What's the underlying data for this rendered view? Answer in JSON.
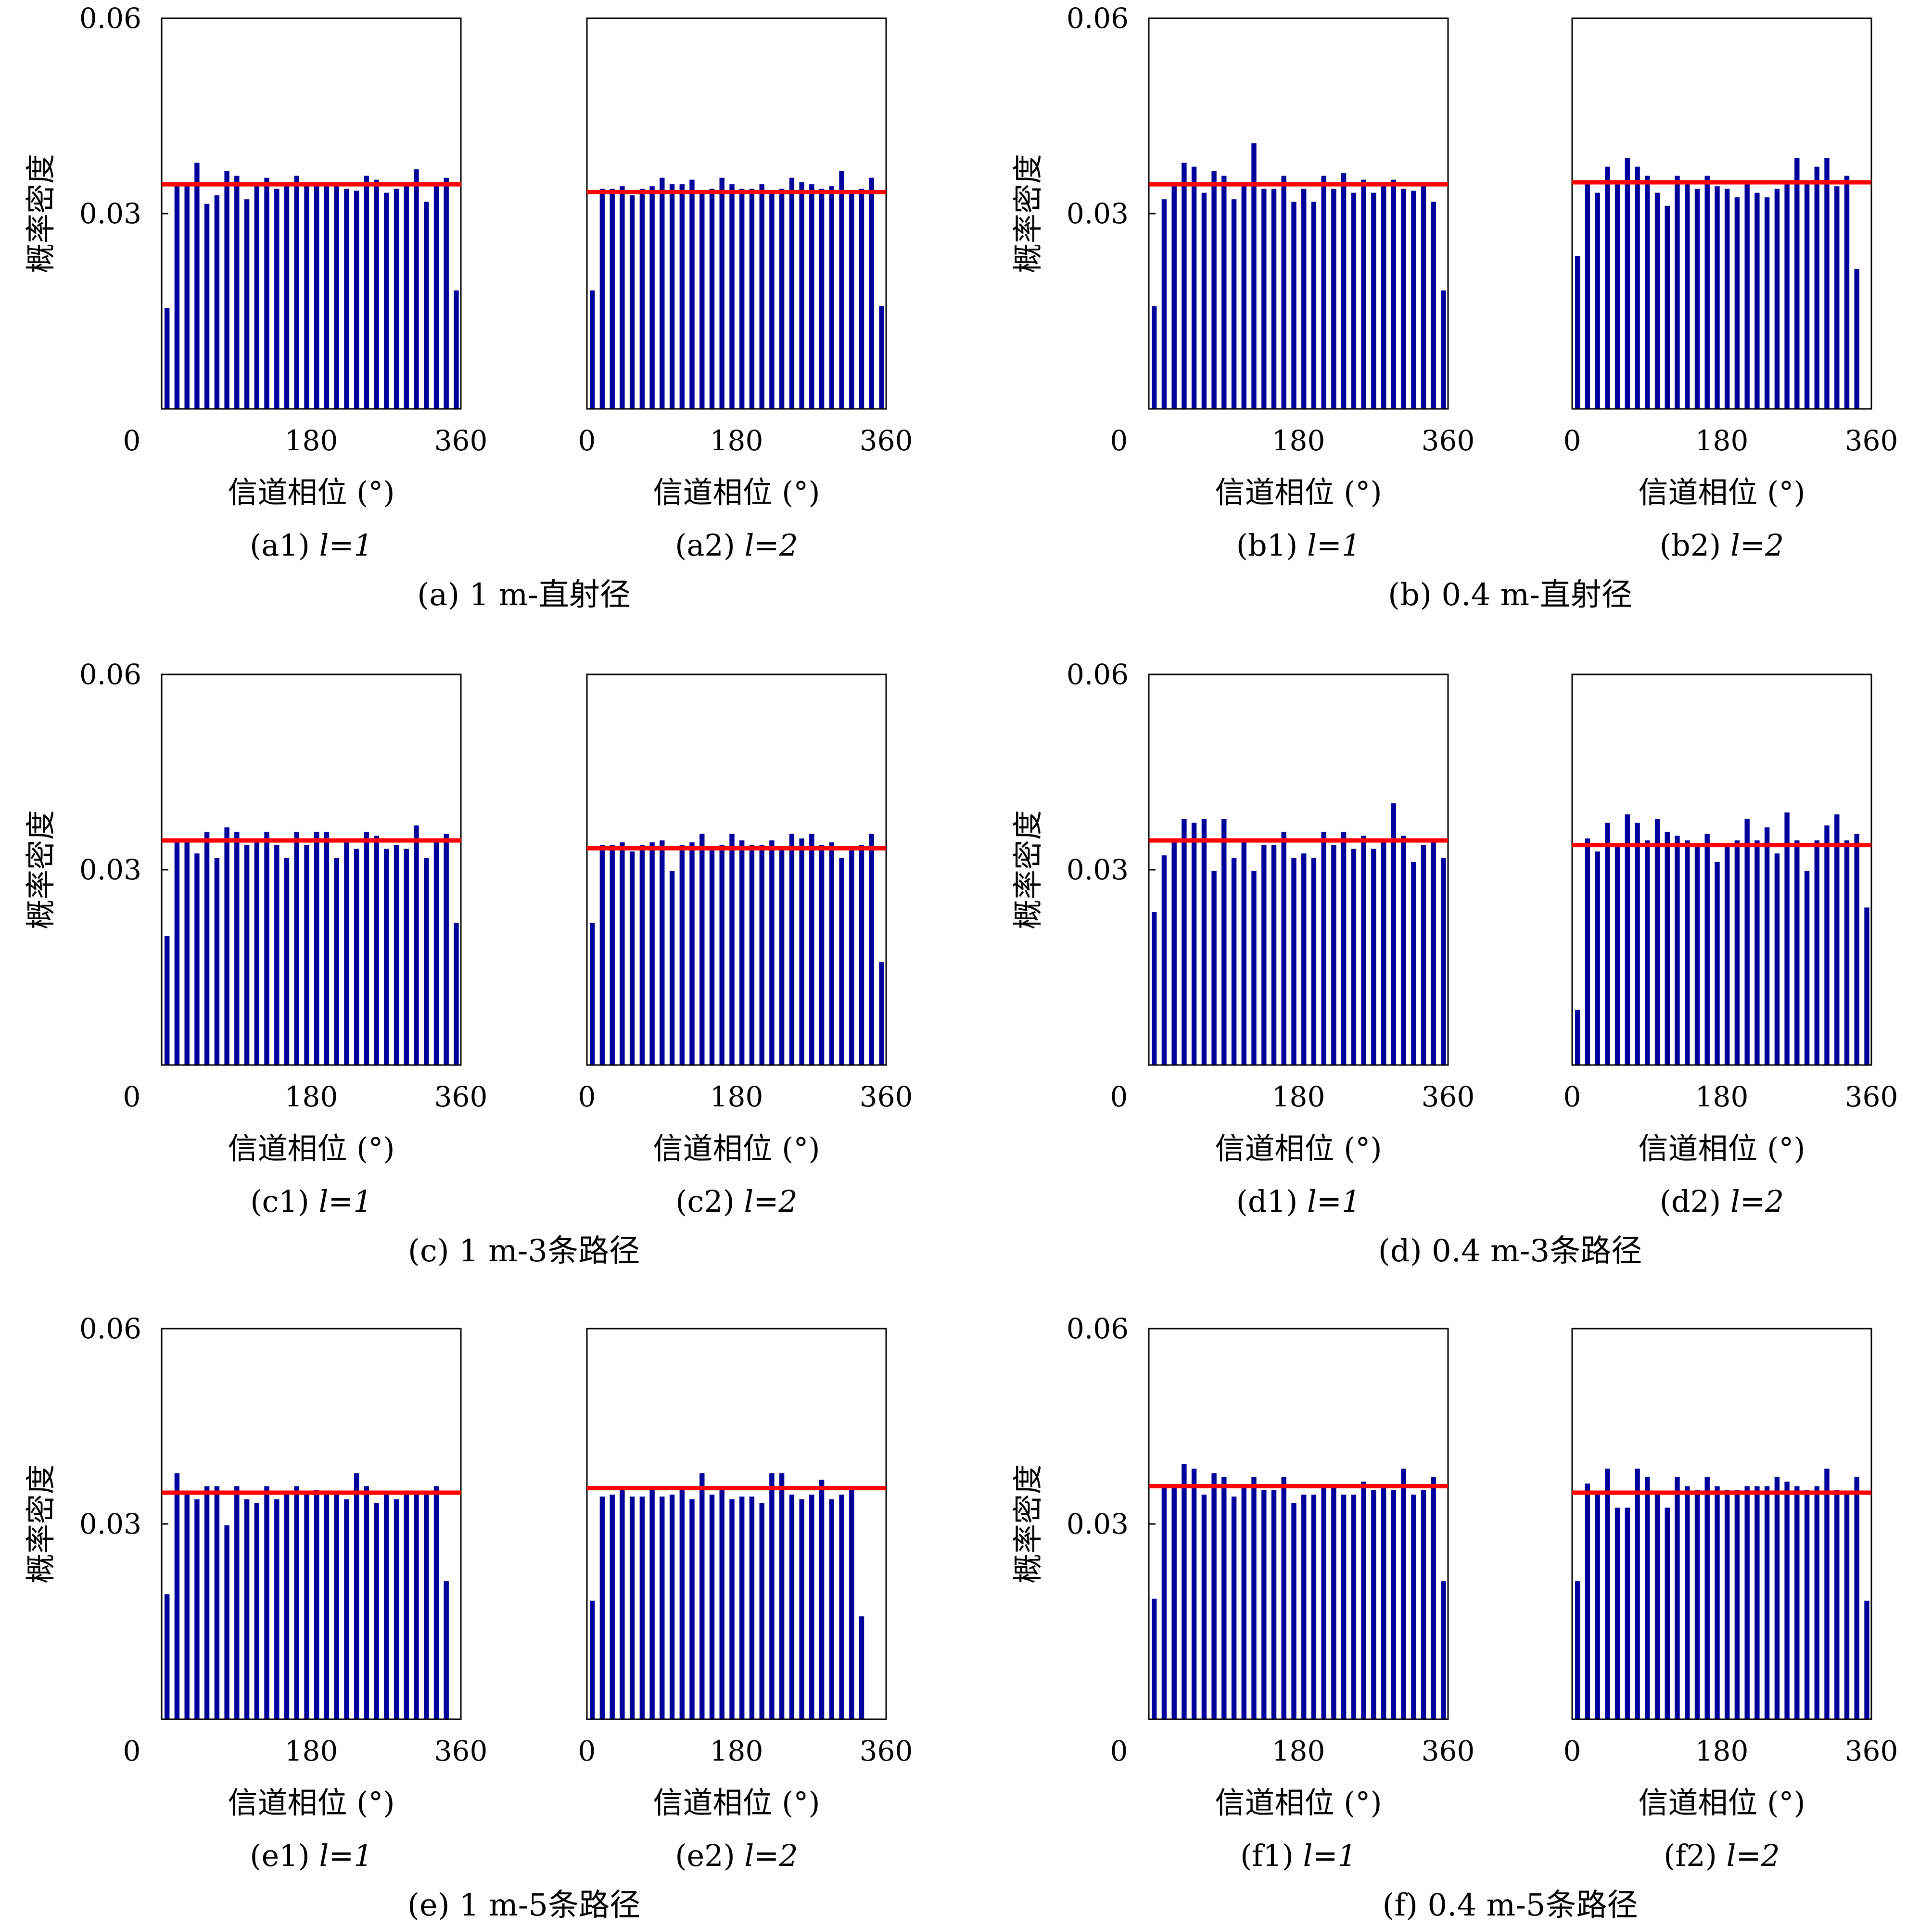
{
  "chart_data": [
    {
      "panel": "(a)",
      "group_caption": "(a) 1 m-直射径",
      "charts": [
        {
          "type": "bar",
          "id": "a1",
          "caption": "(a1) ",
          "l_label": "l=1",
          "ylabel": "概率密度",
          "xlabel": "信道相位 (°)",
          "xticks": [
            "0",
            "180",
            "360"
          ],
          "yticks": [
            "0.06",
            "0.03"
          ],
          "xlim": [
            0,
            360
          ],
          "ylim": [
            0,
            0.06
          ],
          "mean_line": 0.0345,
          "values": [
            0.0155,
            0.0345,
            0.0345,
            0.0378,
            0.0315,
            0.0328,
            0.0365,
            0.0358,
            0.0322,
            0.0345,
            0.0355,
            0.0338,
            0.0348,
            0.0358,
            0.0345,
            0.0345,
            0.0345,
            0.0342,
            0.0338,
            0.0335,
            0.0358,
            0.0352,
            0.0332,
            0.0338,
            0.0345,
            0.0368,
            0.0318,
            0.0345,
            0.0355,
            0.0182
          ]
        },
        {
          "type": "bar",
          "id": "a2",
          "caption": "(a2) ",
          "l_label": "l=2",
          "ylabel": "",
          "xlabel": "信道相位 (°)",
          "xticks": [
            "0",
            "180",
            "360"
          ],
          "yticks": [],
          "xlim": [
            0,
            360
          ],
          "ylim": [
            0,
            0.06
          ],
          "mean_line": 0.0333,
          "values": [
            0.0182,
            0.0338,
            0.0338,
            0.0342,
            0.0328,
            0.0338,
            0.0342,
            0.0355,
            0.0345,
            0.0345,
            0.0352,
            0.0335,
            0.0338,
            0.0355,
            0.0345,
            0.0338,
            0.0338,
            0.0345,
            0.0335,
            0.0338,
            0.0355,
            0.0348,
            0.0345,
            0.0338,
            0.0342,
            0.0365,
            0.0332,
            0.0338,
            0.0355,
            0.0158
          ]
        }
      ]
    },
    {
      "panel": "(b)",
      "group_caption": "(b) 0.4 m-直射径",
      "charts": [
        {
          "type": "bar",
          "id": "b1",
          "caption": "(b1) ",
          "l_label": "l=1",
          "ylabel": "概率密度",
          "xlabel": "信道相位 (°)",
          "xticks": [
            "0",
            "180",
            "360"
          ],
          "yticks": [
            "0.06",
            "0.03"
          ],
          "xlim": [
            0,
            360
          ],
          "ylim": [
            0,
            0.06
          ],
          "mean_line": 0.0345,
          "values": [
            0.0158,
            0.0322,
            0.0345,
            0.0378,
            0.0372,
            0.0332,
            0.0365,
            0.0358,
            0.0322,
            0.0345,
            0.0408,
            0.0338,
            0.0338,
            0.0358,
            0.0318,
            0.0338,
            0.0318,
            0.0358,
            0.0338,
            0.0362,
            0.0332,
            0.0352,
            0.0332,
            0.0345,
            0.0352,
            0.0338,
            0.0335,
            0.0345,
            0.0318,
            0.0182
          ]
        },
        {
          "type": "bar",
          "id": "b2",
          "caption": "(b2) ",
          "l_label": "l=2",
          "ylabel": "",
          "xlabel": "信道相位 (°)",
          "xticks": [
            "0",
            "180",
            "360"
          ],
          "yticks": [],
          "xlim": [
            0,
            360
          ],
          "ylim": [
            0,
            0.06
          ],
          "mean_line": 0.0348,
          "values": [
            0.0235,
            0.0345,
            0.0332,
            0.0372,
            0.0345,
            0.0385,
            0.0372,
            0.0358,
            0.0332,
            0.0312,
            0.0358,
            0.0345,
            0.0338,
            0.0358,
            0.0342,
            0.0338,
            0.0325,
            0.0345,
            0.0332,
            0.0325,
            0.0338,
            0.0345,
            0.0385,
            0.0345,
            0.0372,
            0.0385,
            0.0342,
            0.0358,
            0.0215,
            0.0
          ]
        }
      ]
    },
    {
      "panel": "(c)",
      "group_caption": "(c) 1 m-3条路径",
      "charts": [
        {
          "type": "bar",
          "id": "c1",
          "caption": "(c1) ",
          "l_label": "l=1",
          "ylabel": "概率密度",
          "xlabel": "信道相位 (°)",
          "xticks": [
            "0",
            "180",
            "360"
          ],
          "yticks": [
            "0.06",
            "0.03"
          ],
          "xlim": [
            0,
            360
          ],
          "ylim": [
            0,
            0.06
          ],
          "mean_line": 0.0345,
          "values": [
            0.0198,
            0.0345,
            0.0345,
            0.0325,
            0.0358,
            0.0318,
            0.0365,
            0.0358,
            0.0338,
            0.0345,
            0.0358,
            0.0338,
            0.0318,
            0.0358,
            0.0338,
            0.0358,
            0.0358,
            0.0318,
            0.0345,
            0.0332,
            0.0358,
            0.0352,
            0.0332,
            0.0338,
            0.0332,
            0.0368,
            0.0318,
            0.0345,
            0.0355,
            0.0218
          ]
        },
        {
          "type": "bar",
          "id": "c2",
          "caption": "(c2) ",
          "l_label": "l=2",
          "ylabel": "",
          "xlabel": "信道相位 (°)",
          "xticks": [
            "0",
            "180",
            "360"
          ],
          "yticks": [],
          "xlim": [
            0,
            360
          ],
          "ylim": [
            0,
            0.06
          ],
          "mean_line": 0.0333,
          "values": [
            0.0218,
            0.0338,
            0.0338,
            0.0342,
            0.0328,
            0.0338,
            0.0342,
            0.0345,
            0.0298,
            0.0338,
            0.0342,
            0.0355,
            0.0332,
            0.0338,
            0.0355,
            0.0345,
            0.0338,
            0.0338,
            0.0345,
            0.0335,
            0.0355,
            0.0348,
            0.0355,
            0.0338,
            0.0342,
            0.0318,
            0.0332,
            0.0338,
            0.0355,
            0.0158
          ]
        }
      ]
    },
    {
      "panel": "(d)",
      "group_caption": "(d) 0.4 m-3条路径",
      "charts": [
        {
          "type": "bar",
          "id": "d1",
          "caption": "(d1) ",
          "l_label": "l=1",
          "ylabel": "概率密度",
          "xlabel": "信道相位 (°)",
          "xticks": [
            "0",
            "180",
            "360"
          ],
          "yticks": [
            "0.06",
            "0.03"
          ],
          "xlim": [
            0,
            360
          ],
          "ylim": [
            0,
            0.06
          ],
          "mean_line": 0.0345,
          "values": [
            0.0235,
            0.0322,
            0.0345,
            0.0378,
            0.0372,
            0.0378,
            0.0298,
            0.0378,
            0.0318,
            0.0345,
            0.0298,
            0.0338,
            0.0338,
            0.0358,
            0.0318,
            0.0325,
            0.0318,
            0.0358,
            0.0338,
            0.0358,
            0.0332,
            0.0352,
            0.0332,
            0.0345,
            0.0402,
            0.0352,
            0.0312,
            0.0338,
            0.0345,
            0.0318
          ]
        },
        {
          "type": "bar",
          "id": "d2",
          "caption": "(d2) ",
          "l_label": "l=2",
          "ylabel": "",
          "xlabel": "信道相位 (°)",
          "xticks": [
            "0",
            "180",
            "360"
          ],
          "yticks": [],
          "xlim": [
            0,
            360
          ],
          "ylim": [
            0,
            0.06
          ],
          "mean_line": 0.0338,
          "values": [
            0.0085,
            0.0348,
            0.0328,
            0.0372,
            0.0338,
            0.0385,
            0.0372,
            0.0345,
            0.0378,
            0.0358,
            0.0352,
            0.0345,
            0.0338,
            0.0355,
            0.0312,
            0.0338,
            0.0345,
            0.0378,
            0.0345,
            0.0365,
            0.0325,
            0.0388,
            0.0345,
            0.0298,
            0.0345,
            0.0368,
            0.0385,
            0.0345,
            0.0355,
            0.0242
          ]
        }
      ]
    },
    {
      "panel": "(e)",
      "group_caption": "(e) 1 m-5条路径",
      "charts": [
        {
          "type": "bar",
          "id": "e1",
          "caption": "(e1) ",
          "l_label": "l=1",
          "ylabel": "概率密度",
          "xlabel": "信道相位 (°)",
          "xticks": [
            "0",
            "180",
            "360"
          ],
          "yticks": [
            "0.06",
            "0.03"
          ],
          "xlim": [
            0,
            360
          ],
          "ylim": [
            0,
            0.06
          ],
          "mean_line": 0.0348,
          "values": [
            0.0192,
            0.0378,
            0.0345,
            0.0338,
            0.0358,
            0.0358,
            0.0298,
            0.0358,
            0.0338,
            0.0332,
            0.0358,
            0.0338,
            0.0345,
            0.0358,
            0.0345,
            0.0352,
            0.0345,
            0.0345,
            0.0338,
            0.0378,
            0.0358,
            0.0332,
            0.0345,
            0.0338,
            0.0345,
            0.0345,
            0.0348,
            0.0358,
            0.0212,
            0.0
          ]
        },
        {
          "type": "bar",
          "id": "e2",
          "caption": "(e2) ",
          "l_label": "l=2",
          "ylabel": "",
          "xlabel": "信道相位 (°)",
          "xticks": [
            "0",
            "180",
            "360"
          ],
          "yticks": [],
          "xlim": [
            0,
            360
          ],
          "ylim": [
            0,
            0.06
          ],
          "mean_line": 0.0355,
          "values": [
            0.0182,
            0.0342,
            0.0345,
            0.0352,
            0.0342,
            0.0342,
            0.0355,
            0.0342,
            0.0345,
            0.0352,
            0.0338,
            0.0378,
            0.0345,
            0.0355,
            0.0338,
            0.0342,
            0.0342,
            0.0332,
            0.0378,
            0.0378,
            0.0345,
            0.0338,
            0.0345,
            0.0368,
            0.0338,
            0.0345,
            0.0355,
            0.0158,
            0.0,
            0.0
          ]
        }
      ]
    },
    {
      "panel": "(f)",
      "group_caption": "(f) 0.4 m-5条路径",
      "charts": [
        {
          "type": "bar",
          "id": "f1",
          "caption": "(f1) ",
          "l_label": "l=1",
          "ylabel": "概率密度",
          "xlabel": "信道相位 (°)",
          "xticks": [
            "0",
            "180",
            "360"
          ],
          "yticks": [
            "0.06",
            "0.03"
          ],
          "xlim": [
            0,
            360
          ],
          "ylim": [
            0,
            0.06
          ],
          "mean_line": 0.0358,
          "values": [
            0.0185,
            0.0358,
            0.0358,
            0.0392,
            0.0385,
            0.0345,
            0.0378,
            0.0372,
            0.0342,
            0.0358,
            0.0372,
            0.0352,
            0.0352,
            0.0372,
            0.0332,
            0.0345,
            0.0345,
            0.0358,
            0.0358,
            0.0345,
            0.0345,
            0.0365,
            0.0352,
            0.0358,
            0.0352,
            0.0385,
            0.0345,
            0.0352,
            0.0372,
            0.0212
          ]
        },
        {
          "type": "bar",
          "id": "f2",
          "caption": "(f2) ",
          "l_label": "l=2",
          "ylabel": "",
          "xlabel": "信道相位 (°)",
          "xticks": [
            "0",
            "180",
            "360"
          ],
          "yticks": [],
          "xlim": [
            0,
            360
          ],
          "ylim": [
            0,
            0.06
          ],
          "mean_line": 0.0348,
          "values": [
            0.0212,
            0.0362,
            0.0345,
            0.0385,
            0.0325,
            0.0325,
            0.0385,
            0.0372,
            0.0345,
            0.0325,
            0.0372,
            0.0358,
            0.0352,
            0.0372,
            0.0358,
            0.0352,
            0.0352,
            0.0358,
            0.0358,
            0.0358,
            0.0372,
            0.0365,
            0.0358,
            0.0352,
            0.0358,
            0.0385,
            0.0352,
            0.0345,
            0.0372,
            0.0182
          ]
        }
      ]
    }
  ],
  "colors": {
    "bar": "#00009b",
    "mean_line": "#ff0000",
    "axis": "#000000"
  }
}
